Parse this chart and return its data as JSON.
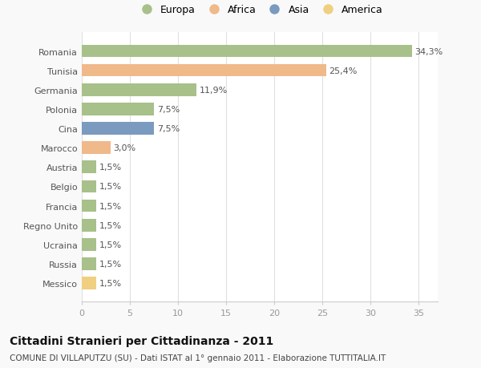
{
  "countries": [
    "Romania",
    "Tunisia",
    "Germania",
    "Polonia",
    "Cina",
    "Marocco",
    "Austria",
    "Belgio",
    "Francia",
    "Regno Unito",
    "Ucraina",
    "Russia",
    "Messico"
  ],
  "values": [
    34.3,
    25.4,
    11.9,
    7.5,
    7.5,
    3.0,
    1.5,
    1.5,
    1.5,
    1.5,
    1.5,
    1.5,
    1.5
  ],
  "labels": [
    "34,3%",
    "25,4%",
    "11,9%",
    "7,5%",
    "7,5%",
    "3,0%",
    "1,5%",
    "1,5%",
    "1,5%",
    "1,5%",
    "1,5%",
    "1,5%",
    "1,5%"
  ],
  "categories": [
    "Europa",
    "Africa",
    "Asia",
    "America"
  ],
  "bar_colors": [
    "#a8c08a",
    "#f0b98a",
    "#a8c08a",
    "#a8c08a",
    "#7b9abf",
    "#f0b98a",
    "#a8c08a",
    "#a8c08a",
    "#a8c08a",
    "#a8c08a",
    "#a8c08a",
    "#a8c08a",
    "#f0d080"
  ],
  "legend_colors": [
    "#a8c08a",
    "#f0b98a",
    "#7b9abf",
    "#f0d080"
  ],
  "title": "Cittadini Stranieri per Cittadinanza - 2011",
  "subtitle": "COMUNE DI VILLAPUTZU (SU) - Dati ISTAT al 1° gennaio 2011 - Elaborazione TUTTITALIA.IT",
  "xlim": [
    0,
    37
  ],
  "xticks": [
    0,
    5,
    10,
    15,
    20,
    25,
    30,
    35
  ],
  "background_color": "#f9f9f9",
  "plot_background": "#ffffff",
  "grid_color": "#e0e0e0",
  "bar_height": 0.65,
  "label_fontsize": 8,
  "title_fontsize": 10,
  "subtitle_fontsize": 7.5,
  "legend_fontsize": 9,
  "tick_fontsize": 8
}
